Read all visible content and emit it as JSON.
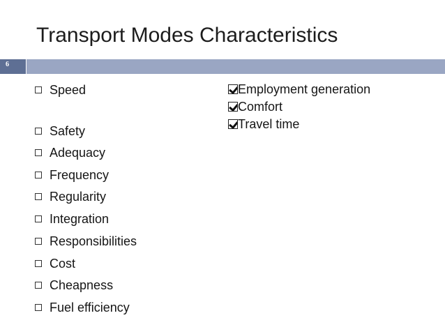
{
  "slide": {
    "title": "Transport Modes Characteristics",
    "number": "6",
    "left_items": [
      "Speed",
      "Safety",
      "Adequacy",
      "Frequency",
      "Regularity",
      "Integration",
      "Responsibilities",
      "Cost",
      "Cheapness",
      "Fuel efficiency"
    ],
    "right_items": [
      "Employment generation",
      "Comfort",
      "Travel time"
    ]
  },
  "colors": {
    "slide_number_bg": "#5e6f94",
    "title_bar": "#9aa6c3",
    "text": "#151515"
  },
  "icons": {
    "left_bullet": "square-bullet-icon",
    "right_bullet": "checkbox-check-icon"
  }
}
